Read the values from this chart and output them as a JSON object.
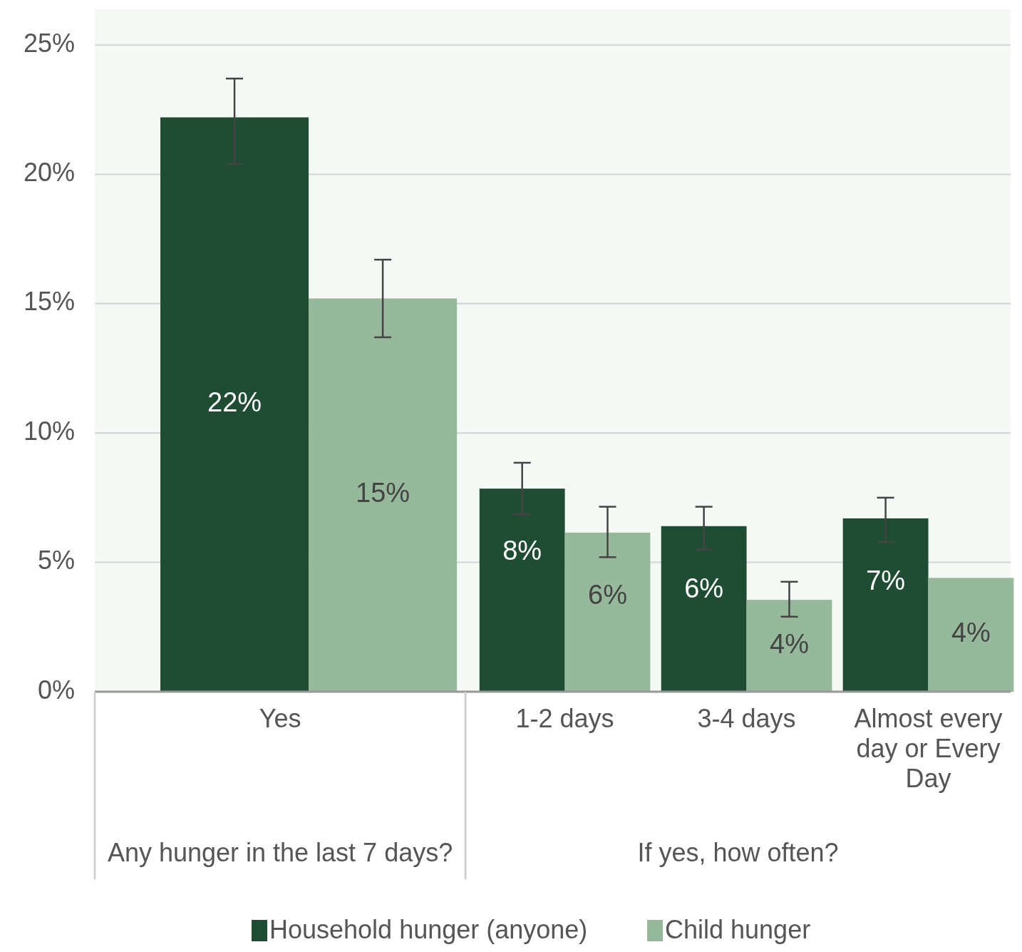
{
  "chart_data": {
    "type": "bar",
    "categories": [
      "Yes",
      "1-2 days",
      "3-4 days",
      "Almost every day or Every Day"
    ],
    "series": [
      {
        "name": "Household hunger (anyone)",
        "color": "#1e4d33",
        "values": [
          22.2,
          7.85,
          6.4,
          6.7
        ],
        "errors": [
          [
            20.4,
            23.7
          ],
          [
            6.85,
            8.85
          ],
          [
            5.5,
            7.15
          ],
          [
            5.8,
            7.5
          ]
        ],
        "value_labels": [
          "22%",
          "8%",
          "6%",
          "7%"
        ]
      },
      {
        "name": "Child hunger",
        "color": "#96b89b",
        "values": [
          15.2,
          6.15,
          3.55,
          4.4
        ],
        "errors": [
          [
            13.7,
            16.7
          ],
          [
            5.2,
            7.15
          ],
          [
            2.9,
            4.25
          ],
          null
        ],
        "value_labels": [
          "15%",
          "6%",
          "4%",
          "4%"
        ]
      }
    ],
    "annotations": [
      "Any hunger in the last 7 days?",
      "If yes, how often?"
    ],
    "ylim": [
      0,
      25
    ],
    "yticks": [
      {
        "value": 0,
        "label": "0%"
      },
      {
        "value": 5,
        "label": "5%"
      },
      {
        "value": 10,
        "label": "10%"
      },
      {
        "value": 15,
        "label": "15%"
      },
      {
        "value": 20,
        "label": "20%"
      },
      {
        "value": 25,
        "label": "25%"
      }
    ],
    "grid": "y",
    "legend": "bottom"
  }
}
